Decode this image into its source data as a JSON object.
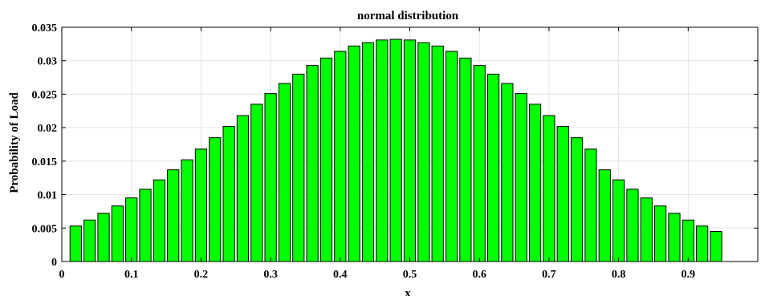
{
  "chart_data": {
    "type": "bar",
    "title": "normal distribution",
    "xlabel": "x",
    "ylabel": "Probability of Load",
    "xlim": [
      0,
      1
    ],
    "ylim": [
      0,
      0.035
    ],
    "grid": true,
    "bar_color": "#00ff00",
    "x": [
      0.02,
      0.04,
      0.06,
      0.08,
      0.1,
      0.12,
      0.14,
      0.16,
      0.18,
      0.2,
      0.22,
      0.24,
      0.26,
      0.28,
      0.3,
      0.32,
      0.34,
      0.36,
      0.38,
      0.4,
      0.42,
      0.44,
      0.46,
      0.48,
      0.5,
      0.52,
      0.54,
      0.56,
      0.58,
      0.6,
      0.62,
      0.64,
      0.66,
      0.68,
      0.7,
      0.72,
      0.74,
      0.76,
      0.78,
      0.8,
      0.82,
      0.84,
      0.86,
      0.88,
      0.9,
      0.92,
      0.94
    ],
    "values": [
      0.0053,
      0.0062,
      0.0072,
      0.0083,
      0.0095,
      0.0108,
      0.0122,
      0.0137,
      0.0152,
      0.0168,
      0.0185,
      0.0202,
      0.0218,
      0.0235,
      0.0251,
      0.0266,
      0.028,
      0.0293,
      0.0304,
      0.0314,
      0.0322,
      0.0327,
      0.0331,
      0.0332,
      0.0331,
      0.0327,
      0.0322,
      0.0314,
      0.0304,
      0.0293,
      0.028,
      0.0266,
      0.0251,
      0.0235,
      0.0218,
      0.0202,
      0.0185,
      0.0168,
      0.0137,
      0.0122,
      0.0108,
      0.0095,
      0.0083,
      0.0072,
      0.0062,
      0.0053,
      0.0045
    ],
    "xticks": [
      "0",
      "0.1",
      "0.2",
      "0.3",
      "0.4",
      "0.5",
      "0.6",
      "0.7",
      "0.8",
      "0.9"
    ],
    "yticks": [
      "0",
      "0.005",
      "0.01",
      "0.015",
      "0.02",
      "0.025",
      "0.03",
      "0.035"
    ]
  }
}
